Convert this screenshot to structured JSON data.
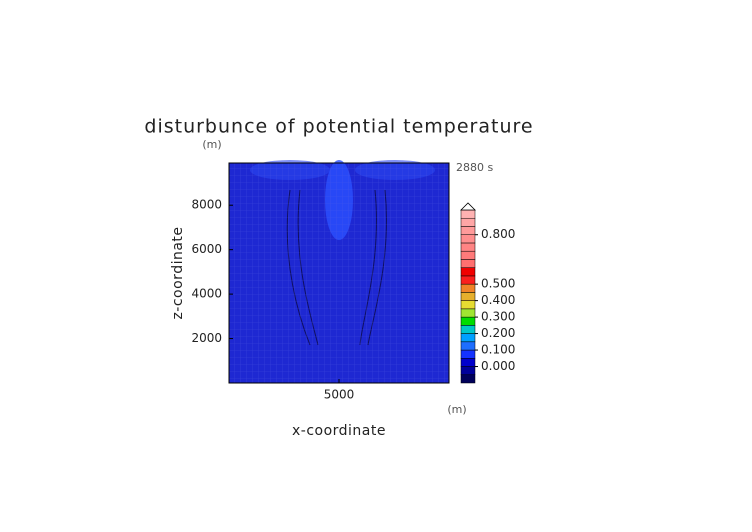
{
  "chart_data": {
    "type": "contour",
    "title": "disturbunce of potential temperature",
    "x_label": "x-coordinate",
    "y_label": "z-coordinate",
    "x_unit": "(m)",
    "y_unit": "(m)",
    "time_label": "2880 s",
    "xlim": [
      0,
      10000
    ],
    "xticks": [
      5000
    ],
    "ylim": [
      0,
      9900
    ],
    "yticks": [
      2000,
      4000,
      6000,
      8000
    ],
    "field_color": "#1e28d2",
    "colorbar": {
      "bounds": [
        -0.1,
        -0.05,
        0,
        0.05,
        0.1,
        0.15,
        0.2,
        0.25,
        0.3,
        0.35,
        0.4,
        0.45,
        0.5,
        0.55,
        0.6,
        0.65,
        0.7,
        0.75,
        0.8,
        0.85,
        0.9,
        0.95
      ],
      "colors": [
        "#00005a",
        "#00009a",
        "#0000cc",
        "#1432ff",
        "#1e6eff",
        "#00a0ff",
        "#00c8c8",
        "#00dc00",
        "#a0e632",
        "#e6dc32",
        "#e6af2d",
        "#f08228",
        "#fa1e1e",
        "#f00000",
        "#ff7070",
        "#ff7a7a",
        "#ff8484",
        "#ff8e8e",
        "#ff9a9a",
        "#ffa6a6",
        "#ffb2b2"
      ],
      "ticks": [
        {
          "value": 0,
          "label": "0.000"
        },
        {
          "value": 0.1,
          "label": "0.100"
        },
        {
          "value": 0.2,
          "label": "0.200"
        },
        {
          "value": 0.3,
          "label": "0.300"
        },
        {
          "value": 0.4,
          "label": "0.400"
        },
        {
          "value": 0.5,
          "label": "0.500"
        },
        {
          "value": 0.8,
          "label": "0.800"
        }
      ]
    }
  }
}
